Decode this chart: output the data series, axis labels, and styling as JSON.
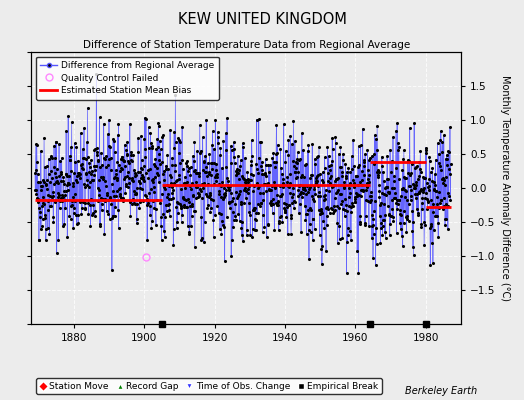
{
  "title": "KEW UNITED KINGDOM",
  "subtitle": "Difference of Station Temperature Data from Regional Average",
  "ylabel": "Monthly Temperature Anomaly Difference (°C)",
  "xlim": [
    1868,
    1990
  ],
  "ylim": [
    -2,
    2
  ],
  "xticks": [
    1880,
    1900,
    1920,
    1940,
    1960,
    1980
  ],
  "yticks_right": [
    -1.5,
    -1,
    -0.5,
    0,
    0.5,
    1,
    1.5
  ],
  "yticks_all": [
    -2,
    -1.5,
    -1,
    -0.5,
    0,
    0.5,
    1,
    1.5,
    2
  ],
  "seed": 42,
  "start_year": 1869.0,
  "end_year": 1987.0,
  "num_points": 1416,
  "bias_segments": [
    {
      "x_start": 1869.0,
      "x_end": 1905.0,
      "bias": -0.18
    },
    {
      "x_start": 1905.0,
      "x_end": 1964.0,
      "bias": 0.05
    },
    {
      "x_start": 1964.0,
      "x_end": 1980.0,
      "bias": 0.38
    },
    {
      "x_start": 1980.0,
      "x_end": 1987.0,
      "bias": -0.28
    }
  ],
  "empirical_breaks": [
    1905.0,
    1964.0,
    1980.0
  ],
  "qc_failed_x": 1900.5,
  "qc_failed_y": -1.02,
  "background_color": "#ececec",
  "plot_bg_color": "#ececec",
  "line_color": "#5555ff",
  "dot_color": "#000000",
  "bias_color": "#ff0000",
  "qc_color": "#ff88ff",
  "watermark": "Berkeley Earth"
}
